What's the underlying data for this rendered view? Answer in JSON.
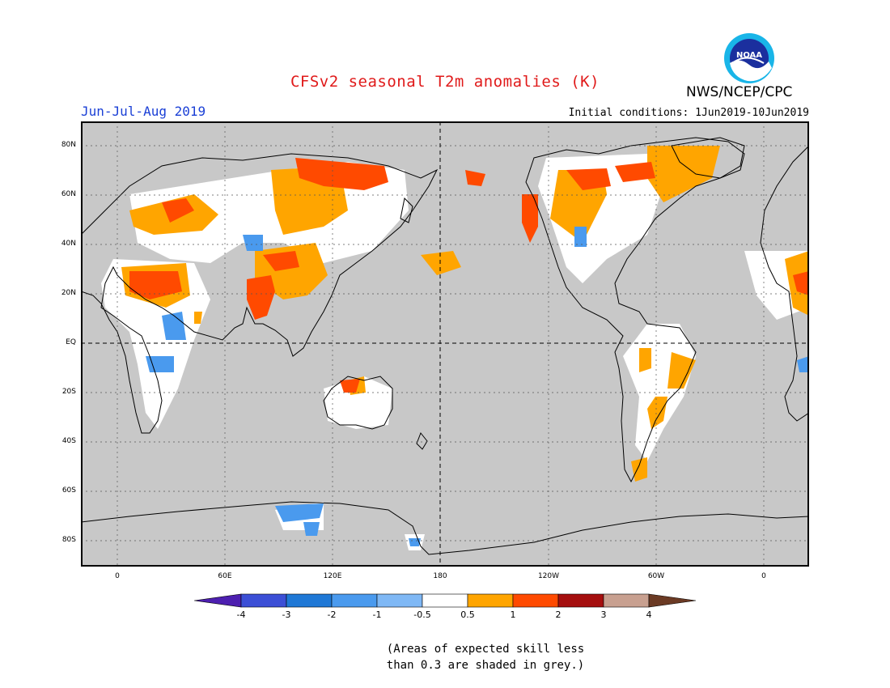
{
  "header": {
    "title": "CFSv2 seasonal T2m anomalies (K)",
    "season": "Jun-Jul-Aug 2019",
    "initial_conditions": "Initial conditions: 1Jun2019-10Jun2019",
    "organization": "NWS/NCEP/CPC",
    "logo_text": "NOAA"
  },
  "map": {
    "latitude_labels": [
      "80N",
      "60N",
      "40N",
      "20N",
      "EQ",
      "20S",
      "40S",
      "60S",
      "80S"
    ],
    "longitude_labels": [
      "0",
      "60E",
      "120E",
      "180",
      "120W",
      "60W",
      "0"
    ],
    "background_color": "#c8c8c8",
    "low_skill_note": "grey"
  },
  "legend": {
    "labels": [
      "-4",
      "-3",
      "-2",
      "-1",
      "-0.5",
      "0.5",
      "1",
      "2",
      "3",
      "4"
    ],
    "colors": [
      "#4d1fb0",
      "#3c4fd6",
      "#1f78d6",
      "#4a9aee",
      "#7fb8f5",
      "#ffffff",
      "#ffa500",
      "#ff4a00",
      "#a50f0f",
      "#c8a090",
      "#6b3a24"
    ]
  },
  "note": {
    "line1": "(Areas of expected skill less",
    "line2": "than 0.3 are shaded in grey.)"
  }
}
